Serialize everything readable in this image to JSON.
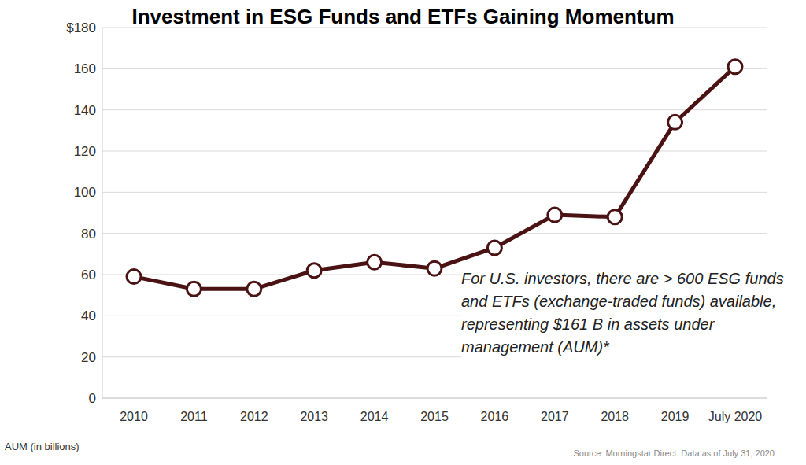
{
  "chart_data": {
    "type": "line",
    "title": "Investment in ESG Funds and ETFs Gaining Momentum",
    "ylabel": "AUM (in billions)",
    "annotation": "For U.S. investors, there are > 600 ESG funds and ETFs (exchange-traded funds) available, representing $161 B in assets under management (AUM)*",
    "source": "Source: Morningstar Direct. Data as of July 31, 2020",
    "categories": [
      "2010",
      "2011",
      "2012",
      "2013",
      "2014",
      "2015",
      "2016",
      "2017",
      "2018",
      "2019",
      "July 2020"
    ],
    "values": [
      59,
      53,
      53,
      62,
      66,
      63,
      73,
      89,
      88,
      134,
      161
    ],
    "color": "#4a1212",
    "marker": "circle",
    "ylim": [
      0,
      180
    ],
    "yticks": [
      0,
      20,
      40,
      60,
      80,
      100,
      120,
      140,
      160,
      {
        "value": 180,
        "label": "$180"
      }
    ],
    "grid": true
  }
}
